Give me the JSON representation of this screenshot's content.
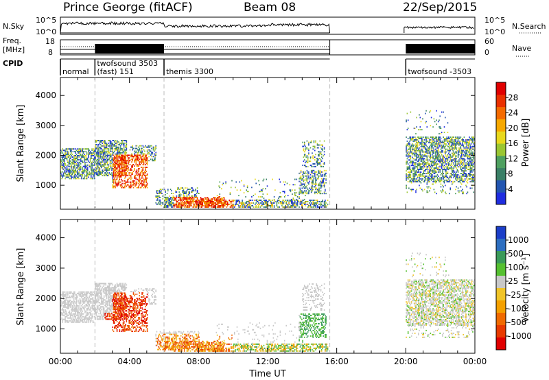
{
  "header": {
    "station": "Prince George (fitACF)",
    "beam": "Beam 08",
    "date": "22/Sep/2015"
  },
  "strips": {
    "nsky_label": "N.Sky",
    "nsearch_label": "N.Search",
    "nsky_ticks": [
      "10^5",
      "10^0"
    ],
    "nsky_right_ticks": [
      "10^5",
      "10^0"
    ],
    "freq_label_top": "Freq.",
    "freq_label_bottom": "[MHz]",
    "freq_ticks": [
      "18",
      "8"
    ],
    "freq_right_ticks": [
      "60",
      "0"
    ],
    "nave_label": "Nave",
    "cpid_label": "CPID"
  },
  "cpid_segments": [
    {
      "text": "normal",
      "start": 0.0
    },
    {
      "text": "twofsound 3503",
      "start": 2.0
    },
    {
      "text": "(fast) 151",
      "start": 2.0
    },
    {
      "text": "themis 3300",
      "start": 6.0
    },
    {
      "text": "twofsound -3503",
      "start": 20.0
    }
  ],
  "chart_data": [
    {
      "type": "heatmap",
      "name": "Power",
      "xlabel": "",
      "ylabel": "Slant Range [km]",
      "xlim": [
        0,
        24
      ],
      "ylim": [
        200,
        4600
      ],
      "y_ticks": [
        "1000",
        "2000",
        "3000",
        "4000"
      ],
      "colorbar": {
        "label": "Power [dB]",
        "ticks": [
          "4",
          "8",
          "12",
          "16",
          "20",
          "24",
          "28"
        ],
        "colors": [
          "#1f2de0",
          "#2255b0",
          "#3a7f66",
          "#4ea060",
          "#9ac632",
          "#e8d81c",
          "#f6a800",
          "#f46a00",
          "#ea3000",
          "#e00000"
        ]
      }
    },
    {
      "type": "heatmap",
      "name": "Velocity",
      "xlabel": "Time UT",
      "ylabel": "Slant Range [km]",
      "xlim": [
        0,
        24
      ],
      "ylim": [
        200,
        4600
      ],
      "x_ticks": [
        "00:00",
        "04:00",
        "08:00",
        "12:00",
        "16:00",
        "20:00",
        "00:00"
      ],
      "y_ticks": [
        "1000",
        "2000",
        "3000",
        "4000"
      ],
      "colorbar": {
        "label": "Velocity [m s⁻¹]",
        "ticks": [
          "1000",
          "500",
          "100",
          "25",
          "-25",
          "-100",
          "-500",
          "-1000"
        ],
        "colors": [
          "#1b3ec8",
          "#2c6ec0",
          "#3a9a5a",
          "#55c030",
          "#c8c8c8",
          "#f0c428",
          "#f4a000",
          "#f06a00",
          "#e83a00",
          "#e00000"
        ]
      }
    }
  ]
}
